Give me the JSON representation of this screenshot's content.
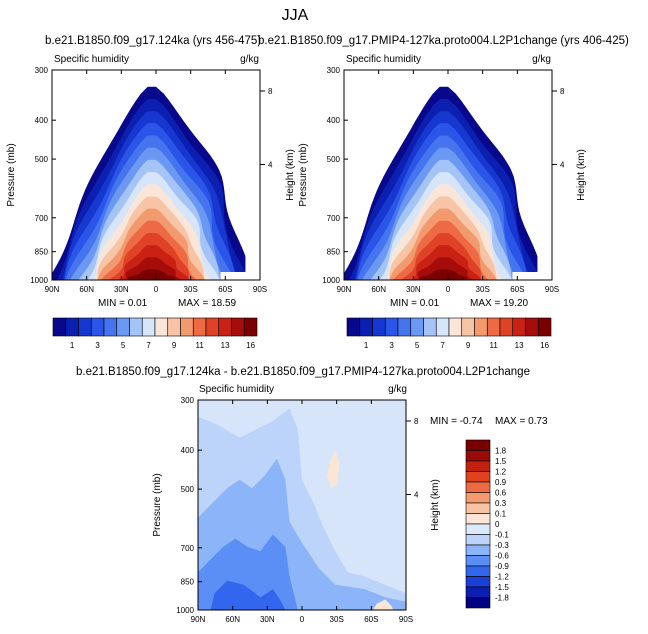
{
  "page_title": "JJA",
  "chart_data": [
    {
      "type": "heatmap",
      "id": "panel-1",
      "title": "b.e21.B1850.f09_g17.124ka (yrs 456-475)",
      "variable": "Specific humidity",
      "units": "g/kg",
      "ylabel": "Pressure (mb)",
      "right_label": "Height (km)",
      "x_ticks": [
        "90N",
        "60N",
        "30N",
        "0",
        "30S",
        "60S",
        "90S"
      ],
      "y_ticks": [
        "300",
        "400",
        "500",
        "700",
        "850",
        "1000"
      ],
      "height_ticks": [
        "8",
        "4"
      ],
      "min_label": "MIN =  0.01",
      "max_label": "MAX = 18.59",
      "colorbar_labels": [
        "1",
        "3",
        "5",
        "7",
        "9",
        "11",
        "13",
        "16"
      ]
    },
    {
      "type": "heatmap",
      "id": "panel-2",
      "title": "b.e21.B1850.f09_g17.PMIP4-127ka.proto004.L2P1change (yrs 406-425)",
      "variable": "Specific humidity",
      "units": "g/kg",
      "ylabel": "Pressure (mb)",
      "right_label": "Height (km)",
      "x_ticks": [
        "90N",
        "60N",
        "30N",
        "0",
        "30S",
        "60S",
        "90S"
      ],
      "y_ticks": [
        "300",
        "400",
        "500",
        "700",
        "850",
        "1000"
      ],
      "height_ticks": [
        "8",
        "4"
      ],
      "min_label": "MIN =  0.01",
      "max_label": "MAX = 19.20",
      "colorbar_labels": [
        "1",
        "3",
        "5",
        "7",
        "9",
        "11",
        "13",
        "16"
      ]
    },
    {
      "type": "heatmap",
      "id": "panel-diff",
      "title": "b.e21.B1850.f09_g17.124ka - b.e21.B1850.f09_g17.PMIP4-127ka.proto004.L2P1change",
      "variable": "Specific humidity",
      "units": "g/kg",
      "ylabel": "Pressure (mb)",
      "right_label": "Height (km)",
      "x_ticks": [
        "90N",
        "60N",
        "30N",
        "0",
        "30S",
        "60S",
        "90S"
      ],
      "y_ticks": [
        "300",
        "400",
        "500",
        "700",
        "850",
        "1000"
      ],
      "height_ticks": [
        "8",
        "4"
      ],
      "min_label": "MIN = -0.74",
      "max_label": "MAX =  0.73",
      "colorbar_labels": [
        "1.8",
        "1.5",
        "1.2",
        "0.9",
        "0.6",
        "0.3",
        "0.1",
        "0",
        "-0.1",
        "-0.3",
        "-0.6",
        "-0.9",
        "-1.2",
        "-1.5",
        "-1.8"
      ]
    }
  ],
  "colors": {
    "abs_scale": [
      "#08088c",
      "#0b1fb0",
      "#1638d0",
      "#2a55e8",
      "#4574ee",
      "#6b98f2",
      "#a4c3f6",
      "#d6e5fa",
      "#fae6d8",
      "#f8c4a6",
      "#f3996e",
      "#ed6a44",
      "#df4226",
      "#c92214",
      "#a60c0a",
      "#7a0000"
    ],
    "diff_scale": [
      "#000080",
      "#0c1fb0",
      "#1a3ed6",
      "#3366ee",
      "#5b8ff5",
      "#8cb4f8",
      "#bcd3fa",
      "#dce9fb",
      "#fbe6d6",
      "#f8c3a4",
      "#f5996e",
      "#ee6a44",
      "#e0411f",
      "#c3200f",
      "#9c0a08",
      "#7a0000"
    ]
  }
}
